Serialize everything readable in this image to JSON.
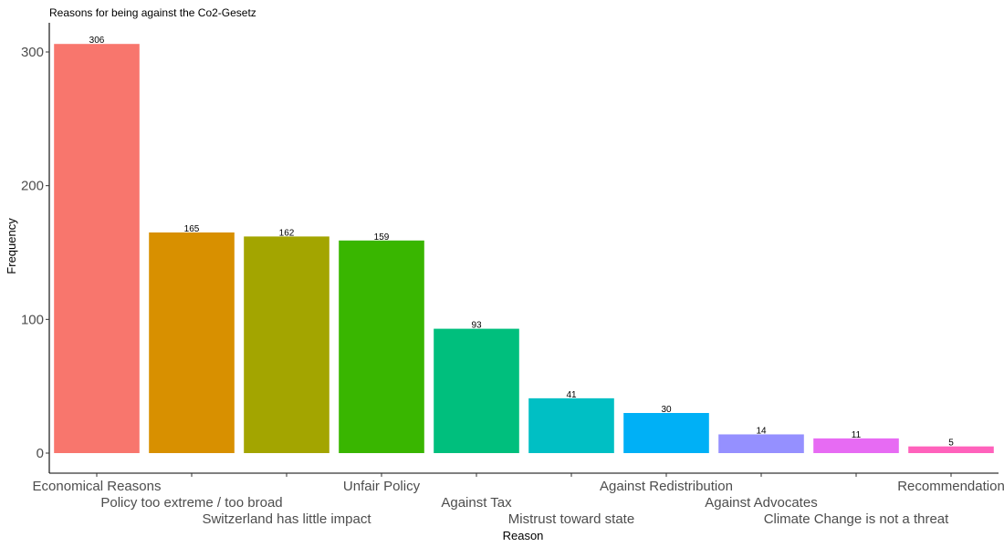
{
  "chart_data": {
    "type": "bar",
    "title": "Reasons for being against the Co2-Gesetz",
    "xlabel": "Reason",
    "ylabel": "Frequency",
    "ylim": [
      0,
      320
    ],
    "yticks": [
      0,
      100,
      200,
      300
    ],
    "grid": false,
    "categories": [
      "Economical Reasons",
      "Policy too extreme / too broad",
      "Switzerland has little impact",
      "Unfair Policy",
      "Against Tax",
      "Mistrust toward state",
      "Against Redistribution",
      "Against Advocates",
      "Climate Change is not a threat",
      "Recommendation"
    ],
    "values": [
      306,
      165,
      162,
      159,
      93,
      41,
      30,
      14,
      11,
      5
    ],
    "colors": [
      "#F8766D",
      "#D89000",
      "#A3A500",
      "#39B600",
      "#00BF7D",
      "#00BFC4",
      "#00B0F6",
      "#9590FF",
      "#E76BF3",
      "#FF62BC"
    ]
  }
}
